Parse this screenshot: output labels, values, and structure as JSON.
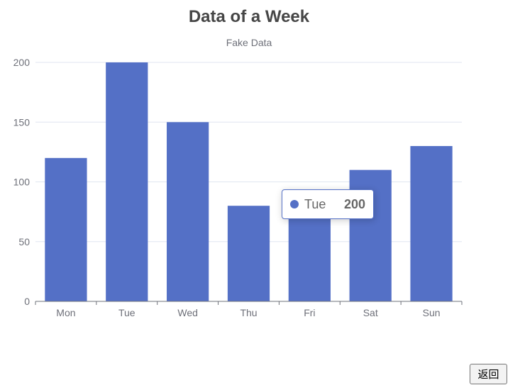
{
  "chart_data": {
    "type": "bar",
    "title": "Data of a Week",
    "subtitle": "Fake Data",
    "categories": [
      "Mon",
      "Tue",
      "Wed",
      "Thu",
      "Fri",
      "Sat",
      "Sun"
    ],
    "values": [
      120,
      200,
      150,
      80,
      70,
      110,
      130
    ],
    "ylim": [
      0,
      200
    ],
    "yticks": [
      0,
      50,
      100,
      150,
      200
    ],
    "grid": true,
    "color": "#5470c6"
  },
  "tooltip": {
    "name": "Tue",
    "value": "200",
    "color": "#5470c6"
  },
  "back_button": {
    "label": "返回"
  }
}
